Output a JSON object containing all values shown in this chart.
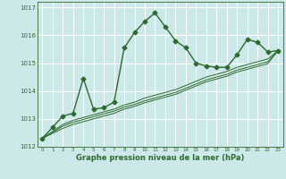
{
  "bg_color": "#cce8e8",
  "grid_color": "#ffffff",
  "line_color": "#2d6a2d",
  "text_color": "#2d6a2d",
  "xlabel": "Graphe pression niveau de la mer (hPa)",
  "xlim": [
    -0.5,
    23.5
  ],
  "ylim": [
    1012,
    1017.2
  ],
  "yticks": [
    1012,
    1013,
    1014,
    1015,
    1016,
    1017
  ],
  "xticks": [
    0,
    1,
    2,
    3,
    4,
    5,
    6,
    7,
    8,
    9,
    10,
    11,
    12,
    13,
    14,
    15,
    16,
    17,
    18,
    19,
    20,
    21,
    22,
    23
  ],
  "series": [
    {
      "x": [
        0,
        1,
        2,
        3,
        4,
        5,
        6,
        7,
        8,
        9,
        10,
        11,
        12,
        13,
        14,
        15,
        16,
        17,
        18,
        19,
        20,
        21,
        22,
        23
      ],
      "y": [
        1012.3,
        1012.7,
        1013.1,
        1013.2,
        1014.45,
        1013.35,
        1013.4,
        1013.6,
        1015.55,
        1016.1,
        1016.5,
        1016.8,
        1016.3,
        1015.8,
        1015.55,
        1015.0,
        1014.9,
        1014.85,
        1014.85,
        1015.3,
        1015.85,
        1015.75,
        1015.4,
        1015.45
      ],
      "style": "-",
      "marker": "D",
      "markersize": 2.5,
      "linewidth": 1.0
    },
    {
      "x": [
        0,
        1,
        2,
        3,
        4,
        5,
        6,
        7,
        8,
        9,
        10,
        11,
        12,
        13,
        14,
        15,
        16,
        17,
        18,
        19,
        20,
        21,
        22,
        23
      ],
      "y": [
        1012.3,
        1012.55,
        1012.8,
        1012.95,
        1013.05,
        1013.15,
        1013.25,
        1013.35,
        1013.5,
        1013.6,
        1013.75,
        1013.85,
        1013.95,
        1014.05,
        1014.2,
        1014.35,
        1014.5,
        1014.6,
        1014.7,
        1014.85,
        1014.95,
        1015.05,
        1015.15,
        1015.45
      ],
      "style": "-",
      "marker": null,
      "markersize": 0,
      "linewidth": 0.7
    },
    {
      "x": [
        0,
        1,
        2,
        3,
        4,
        5,
        6,
        7,
        8,
        9,
        10,
        11,
        12,
        13,
        14,
        15,
        16,
        17,
        18,
        19,
        20,
        21,
        22,
        23
      ],
      "y": [
        1012.3,
        1012.52,
        1012.74,
        1012.88,
        1012.98,
        1013.08,
        1013.18,
        1013.28,
        1013.42,
        1013.52,
        1013.65,
        1013.75,
        1013.85,
        1013.95,
        1014.1,
        1014.25,
        1014.4,
        1014.5,
        1014.6,
        1014.75,
        1014.85,
        1014.95,
        1015.05,
        1015.45
      ],
      "style": "-",
      "marker": null,
      "markersize": 0,
      "linewidth": 0.7
    },
    {
      "x": [
        0,
        1,
        2,
        3,
        4,
        5,
        6,
        7,
        8,
        9,
        10,
        11,
        12,
        13,
        14,
        15,
        16,
        17,
        18,
        19,
        20,
        21,
        22,
        23
      ],
      "y": [
        1012.3,
        1012.48,
        1012.66,
        1012.8,
        1012.9,
        1013.0,
        1013.1,
        1013.2,
        1013.35,
        1013.45,
        1013.58,
        1013.68,
        1013.78,
        1013.88,
        1014.03,
        1014.18,
        1014.33,
        1014.43,
        1014.53,
        1014.68,
        1014.78,
        1014.88,
        1014.98,
        1015.45
      ],
      "style": "-",
      "marker": null,
      "markersize": 0,
      "linewidth": 0.7
    }
  ]
}
